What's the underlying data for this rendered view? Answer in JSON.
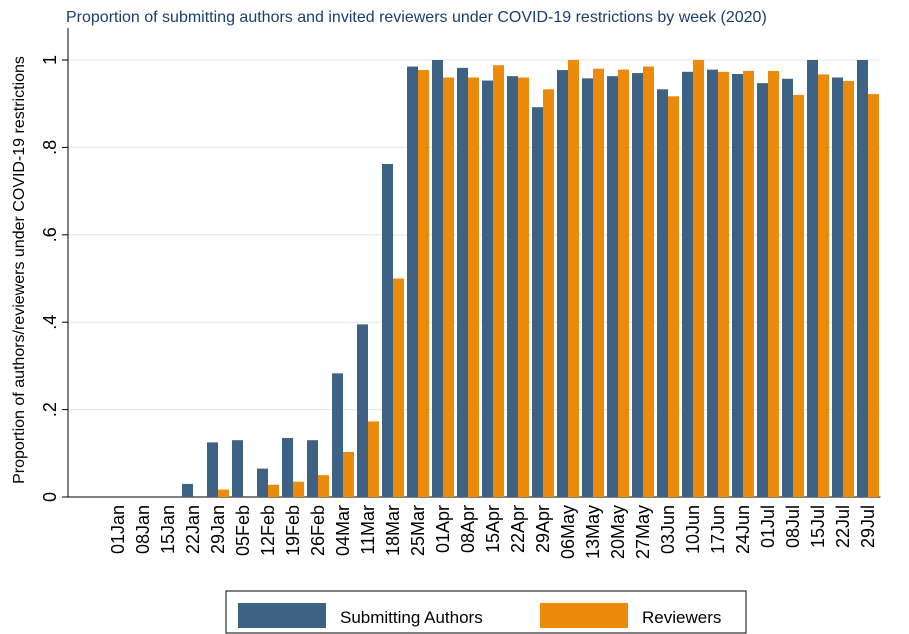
{
  "chart_data": {
    "type": "bar",
    "title": "Proportion of submitting authors and invited reviewers under COVID-19 restrictions by week (2020)",
    "y_label": "Proportion of authors/reviewers under COVID-19 restrictions",
    "categories": [
      "01Jan",
      "08Jan",
      "15Jan",
      "22Jan",
      "29Jan",
      "05Feb",
      "12Feb",
      "19Feb",
      "26Feb",
      "04Mar",
      "11Mar",
      "18Mar",
      "25Mar",
      "01Apr",
      "08Apr",
      "15Apr",
      "22Apr",
      "29Apr",
      "06May",
      "13May",
      "20May",
      "27May",
      "03Jun",
      "10Jun",
      "17Jun",
      "24Jun",
      "01Jul",
      "08Jul",
      "15Jul",
      "22Jul",
      "29Jul"
    ],
    "series": [
      {
        "name": "Submitting Authors",
        "color": "#3d6283",
        "values": [
          0,
          0,
          0,
          0.03,
          0.125,
          0.13,
          0.065,
          0.135,
          0.13,
          0.283,
          0.395,
          0.762,
          0.985,
          1,
          0.982,
          0.953,
          0.963,
          0.892,
          0.977,
          0.958,
          0.963,
          0.97,
          0.933,
          0.973,
          0.978,
          0.968,
          0.947,
          0.957,
          1,
          0.96,
          1
        ]
      },
      {
        "name": "Reviewers",
        "color": "#ec8a0c",
        "values": [
          0,
          0,
          0,
          0,
          0.017,
          0,
          0.028,
          0.035,
          0.05,
          0.103,
          0.173,
          0.5,
          0.977,
          0.96,
          0.96,
          0.988,
          0.96,
          0.933,
          1,
          0.98,
          0.978,
          0.985,
          0.917,
          1,
          0.973,
          0.975,
          0.975,
          0.92,
          0.967,
          0.952,
          0.922
        ]
      }
    ],
    "ylim": [
      0,
      1.05
    ],
    "yticks": [
      0,
      {
        "value": 0.2,
        "label": ".2"
      },
      {
        "value": 0.4,
        "label": ".4"
      },
      {
        "value": 0.6,
        "label": ".6"
      },
      {
        "value": 0.8,
        "label": ".8"
      },
      1
    ],
    "grid": true
  }
}
